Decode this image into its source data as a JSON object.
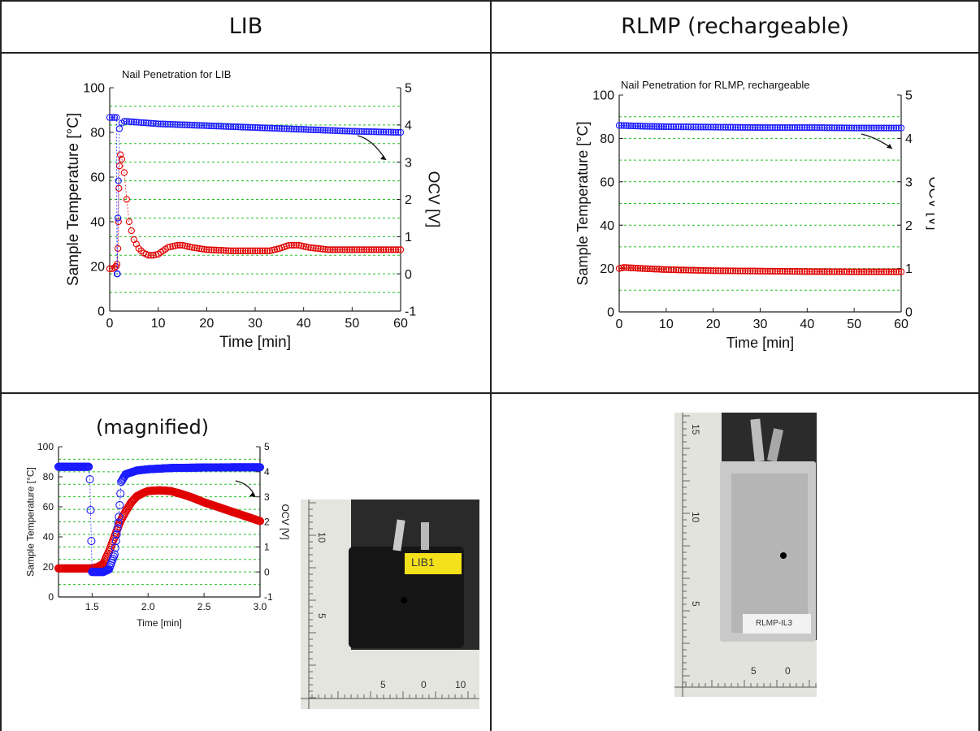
{
  "headers": {
    "left": "LIB",
    "right": "RLMP (rechargeable)"
  },
  "magnified_label": "(magnified)",
  "colors": {
    "temperature": "#e00000",
    "ocv": "#1a1aff",
    "grid": "#22c022",
    "axis": "#222222"
  },
  "chart_data": [
    {
      "id": "lib",
      "type": "scatter",
      "title": "Nail Penetration for LIB",
      "xlabel": "Time [min]",
      "ylabel": "Sample Temperature [°C]",
      "y2label": "OCV [V]",
      "xlim": [
        0,
        60
      ],
      "ylim": [
        0,
        100
      ],
      "y2lim": [
        -1,
        5
      ],
      "xticks": [
        "0",
        "10",
        "20",
        "30",
        "40",
        "50",
        "60"
      ],
      "yticks": [
        "0",
        "20",
        "40",
        "60",
        "80",
        "100"
      ],
      "y2ticks": [
        "-1",
        "0",
        "1",
        "2",
        "3",
        "4",
        "5"
      ],
      "grid": "dashed horizontal on right axis",
      "series": [
        {
          "axis": "left",
          "color": "#e00000",
          "points": [
            [
              0,
              19
            ],
            [
              0.5,
              19
            ],
            [
              1,
              19.5
            ],
            [
              1.3,
              20
            ],
            [
              1.5,
              21
            ],
            [
              1.7,
              28
            ],
            [
              1.8,
              40
            ],
            [
              1.9,
              55
            ],
            [
              2,
              65
            ],
            [
              2.2,
              70
            ],
            [
              2.5,
              68
            ],
            [
              3,
              62
            ],
            [
              3.5,
              50
            ],
            [
              4,
              40
            ],
            [
              5,
              32
            ],
            [
              6,
              28
            ],
            [
              7,
              26
            ],
            [
              8,
              25
            ],
            [
              9,
              25
            ],
            [
              10,
              25.5
            ],
            [
              11,
              27
            ],
            [
              12,
              28.5
            ],
            [
              13,
              29
            ],
            [
              14,
              29.5
            ],
            [
              15,
              29.5
            ],
            [
              17,
              28.5
            ],
            [
              20,
              27.5
            ],
            [
              25,
              27
            ],
            [
              30,
              27
            ],
            [
              33,
              27
            ],
            [
              35,
              28
            ],
            [
              37,
              29.5
            ],
            [
              39,
              29.5
            ],
            [
              41,
              28.5
            ],
            [
              43,
              28
            ],
            [
              45,
              27.5
            ],
            [
              50,
              27.5
            ],
            [
              55,
              27.5
            ],
            [
              60,
              27.5
            ]
          ]
        },
        {
          "axis": "right",
          "color": "#1a1aff",
          "points": [
            [
              0,
              4.2
            ],
            [
              1,
              4.2
            ],
            [
              1.4,
              4.2
            ],
            [
              1.5,
              0
            ],
            [
              1.6,
              0
            ],
            [
              1.7,
              1.5
            ],
            [
              1.8,
              2.5
            ],
            [
              2,
              3.9
            ],
            [
              2.5,
              4.05
            ],
            [
              3,
              4.1
            ],
            [
              5,
              4.08
            ],
            [
              10,
              4.03
            ],
            [
              20,
              3.98
            ],
            [
              30,
              3.93
            ],
            [
              40,
              3.88
            ],
            [
              50,
              3.83
            ],
            [
              60,
              3.8
            ]
          ]
        }
      ]
    },
    {
      "id": "rlmp",
      "type": "scatter",
      "title": "Nail Penetration for RLMP, rechargeable",
      "xlabel": "Time [min]",
      "ylabel": "Sample Temperature [°C]",
      "y2label": "OCV [V]",
      "xlim": [
        0,
        60
      ],
      "ylim": [
        0,
        100
      ],
      "y2lim": [
        0,
        5
      ],
      "xticks": [
        "0",
        "10",
        "20",
        "30",
        "40",
        "50",
        "60"
      ],
      "yticks": [
        "0",
        "20",
        "40",
        "60",
        "80",
        "100"
      ],
      "y2ticks": [
        "0",
        "1",
        "2",
        "3",
        "4",
        "5"
      ],
      "grid": "dashed horizontal on right axis",
      "series": [
        {
          "axis": "left",
          "color": "#e00000",
          "points": [
            [
              0,
              20
            ],
            [
              1,
              20.5
            ],
            [
              5,
              20
            ],
            [
              10,
              19.5
            ],
            [
              20,
              19
            ],
            [
              30,
              18.8
            ],
            [
              40,
              18.6
            ],
            [
              50,
              18.5
            ],
            [
              60,
              18.5
            ]
          ]
        },
        {
          "axis": "right",
          "color": "#1a1aff",
          "points": [
            [
              0,
              4.3
            ],
            [
              5,
              4.28
            ],
            [
              10,
              4.27
            ],
            [
              20,
              4.26
            ],
            [
              30,
              4.25
            ],
            [
              40,
              4.25
            ],
            [
              50,
              4.24
            ],
            [
              60,
              4.24
            ]
          ]
        }
      ]
    },
    {
      "id": "magnified",
      "type": "scatter",
      "title": "",
      "xlabel": "Time [min]",
      "ylabel": "Sample Temperature [°C]",
      "y2label": "OCV [V]",
      "xlim": [
        1.2,
        3.0
      ],
      "ylim": [
        0,
        100
      ],
      "y2lim": [
        -1,
        5
      ],
      "xticks": [
        "1.5",
        "2.0",
        "2.5",
        "3.0"
      ],
      "yticks": [
        "0",
        "20",
        "40",
        "60",
        "80",
        "100"
      ],
      "y2ticks": [
        "-1",
        "0",
        "1",
        "2",
        "3",
        "4",
        "5"
      ],
      "grid": "dashed horizontal on right axis",
      "series": [
        {
          "axis": "left",
          "color": "#e00000",
          "points": [
            [
              1.2,
              19
            ],
            [
              1.5,
              19
            ],
            [
              1.55,
              20
            ],
            [
              1.6,
              22
            ],
            [
              1.65,
              30
            ],
            [
              1.7,
              40
            ],
            [
              1.75,
              50
            ],
            [
              1.8,
              57
            ],
            [
              1.85,
              63
            ],
            [
              1.9,
              67
            ],
            [
              1.95,
              69
            ],
            [
              2.0,
              70.5
            ],
            [
              2.1,
              71
            ],
            [
              2.2,
              70.5
            ],
            [
              2.3,
              68.5
            ],
            [
              2.4,
              66
            ],
            [
              2.5,
              63
            ],
            [
              2.6,
              60.5
            ],
            [
              2.7,
              58
            ],
            [
              2.8,
              55.5
            ],
            [
              2.9,
              53
            ],
            [
              3.0,
              50.5
            ]
          ]
        },
        {
          "axis": "right",
          "color": "#1a1aff",
          "points": [
            [
              1.2,
              4.2
            ],
            [
              1.3,
              4.2
            ],
            [
              1.4,
              4.2
            ],
            [
              1.47,
              4.2
            ],
            [
              1.48,
              3.7
            ],
            [
              1.5,
              0
            ],
            [
              1.55,
              0
            ],
            [
              1.6,
              0
            ],
            [
              1.65,
              0.1
            ],
            [
              1.7,
              0.7
            ],
            [
              1.72,
              1.5
            ],
            [
              1.74,
              2.2
            ],
            [
              1.76,
              3.6
            ],
            [
              1.8,
              3.9
            ],
            [
              1.9,
              4.05
            ],
            [
              2.0,
              4.1
            ],
            [
              2.2,
              4.15
            ],
            [
              2.5,
              4.17
            ],
            [
              2.8,
              4.18
            ],
            [
              3.0,
              4.18
            ]
          ]
        }
      ]
    }
  ],
  "photos": {
    "lib_label": "LIB1",
    "lib_ruler": {
      "top": [
        "10",
        "5"
      ],
      "bottom": [
        "5",
        "0",
        "10"
      ]
    },
    "rlmp_label": "RLMP-IL3",
    "rlmp_ruler": {
      "left": [
        "15",
        "10",
        "5"
      ],
      "bottom": [
        "5",
        "0"
      ]
    }
  }
}
